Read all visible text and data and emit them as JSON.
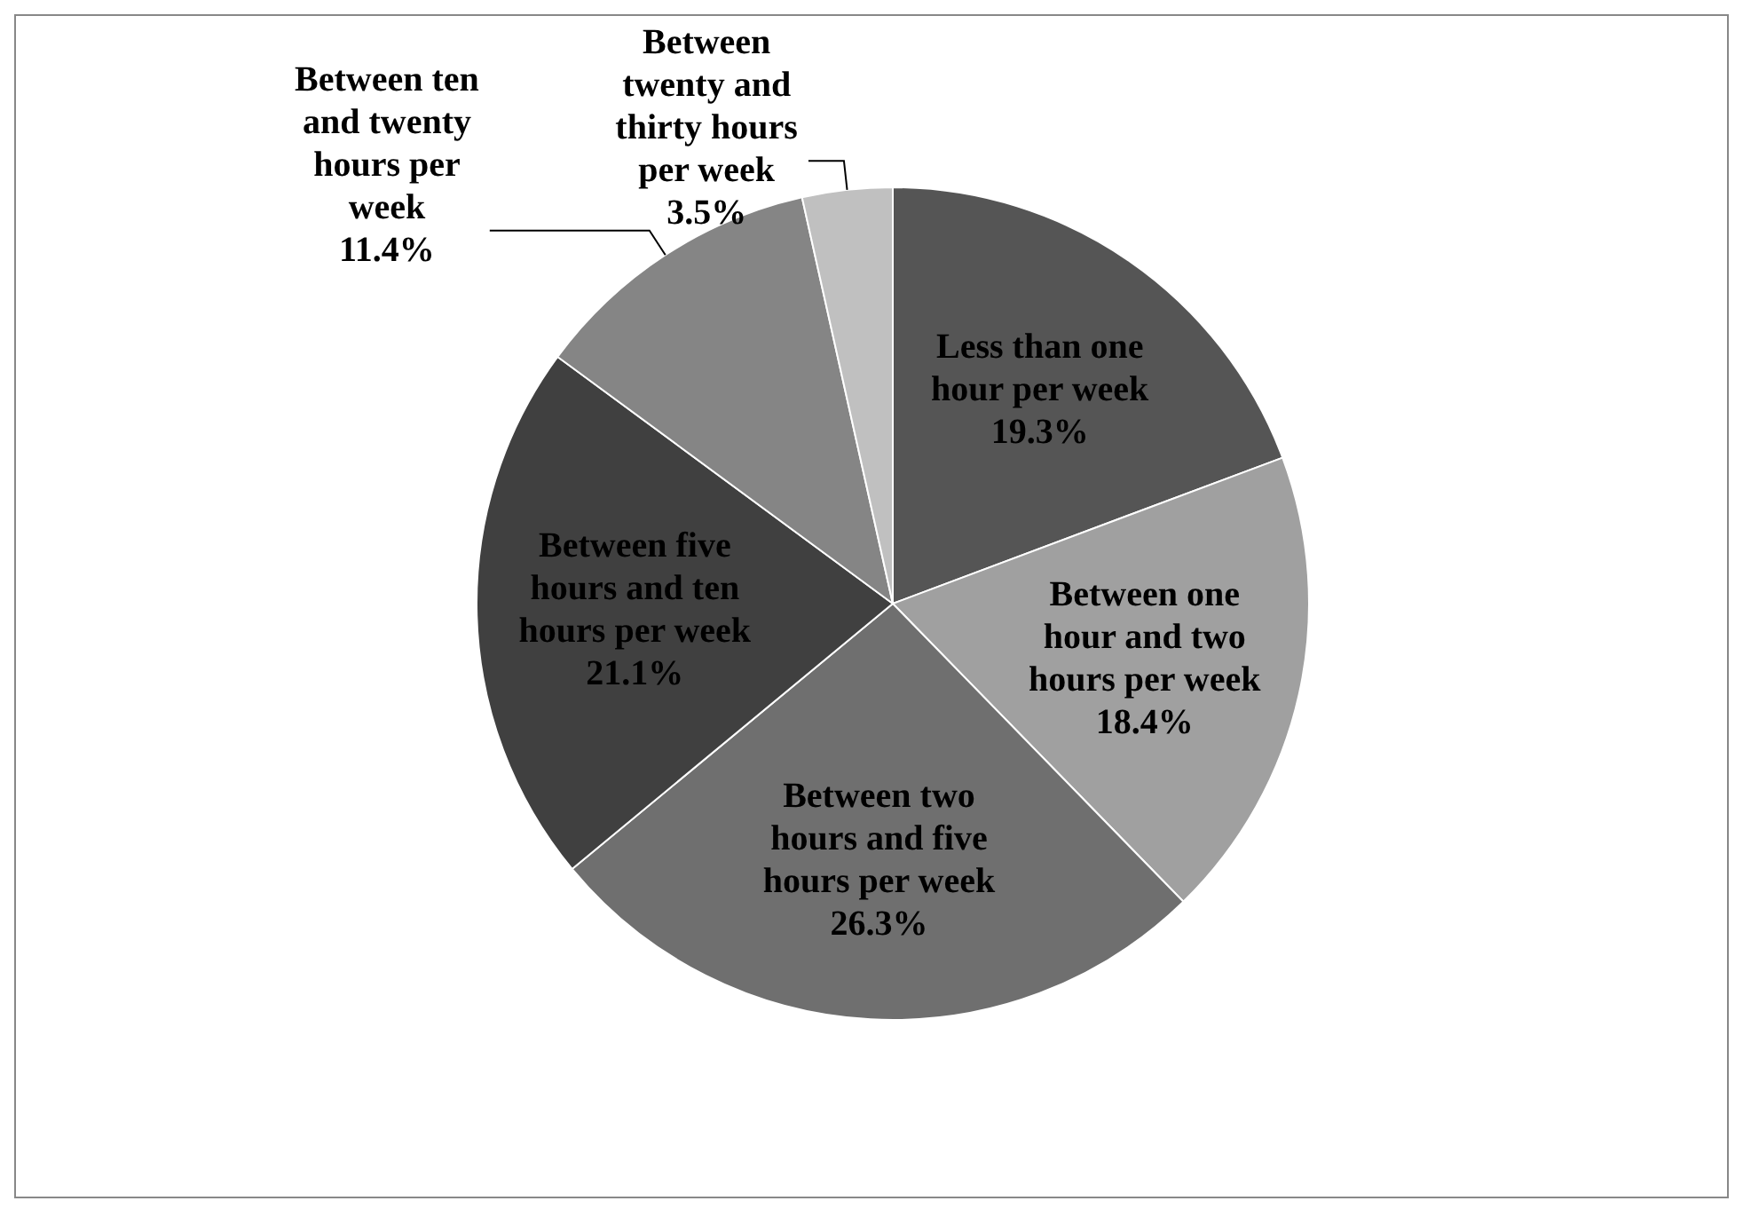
{
  "chart_data": {
    "type": "pie",
    "categories": [
      "Less than one hour per week",
      "Between one hour and two hours per week",
      "Between two hours and five hours per week",
      "Between five hours and ten hours per week",
      "Between ten and twenty hours per week",
      "Between twenty and thirty hours per week"
    ],
    "values": [
      19.3,
      18.4,
      26.3,
      21.1,
      11.4,
      3.5
    ],
    "colors": [
      "#555555",
      "#a0a0a0",
      "#6f6f6f",
      "#404040",
      "#858585",
      "#c0c0c0"
    ],
    "value_labels": [
      "19.3%",
      "18.4%",
      "26.3%",
      "21.1%",
      "11.4%",
      "3.5%"
    ],
    "legend": false
  }
}
